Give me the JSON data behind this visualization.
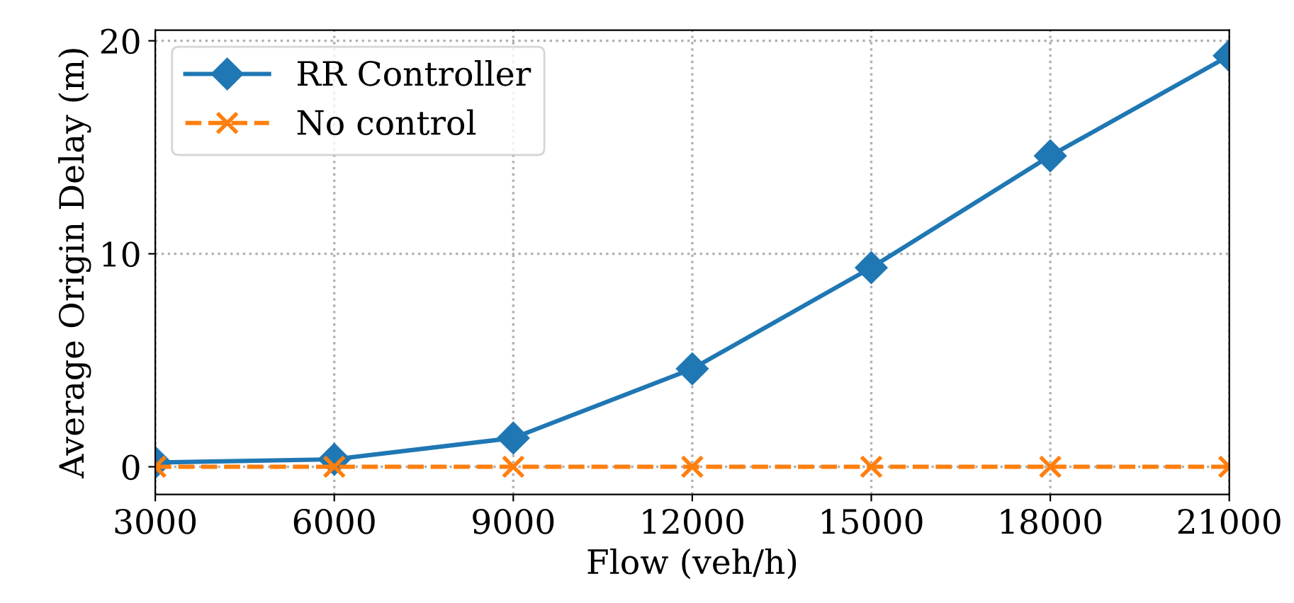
{
  "chart_data": {
    "type": "line",
    "xlabel": "Flow (veh/h)",
    "ylabel": "Average Origin Delay (m)",
    "x": [
      3000,
      6000,
      9000,
      12000,
      15000,
      18000,
      21000
    ],
    "series": [
      {
        "name": "RR Controller",
        "color": "#1f77b4",
        "marker": "diamond",
        "line_style": "solid",
        "values": [
          0.2,
          0.35,
          1.35,
          4.6,
          9.35,
          14.6,
          19.3
        ]
      },
      {
        "name": "No control",
        "color": "#ff7f0e",
        "marker": "cross",
        "line_style": "dashed",
        "values": [
          0,
          0,
          0,
          0,
          0,
          0,
          0
        ]
      }
    ],
    "xlim": [
      3000,
      21000
    ],
    "xticks": [
      3000,
      6000,
      9000,
      12000,
      15000,
      18000,
      21000
    ],
    "ylim": [
      -1.3,
      20.5
    ],
    "yticks": [
      0,
      10,
      20
    ],
    "grid": true,
    "legend": "top left"
  }
}
